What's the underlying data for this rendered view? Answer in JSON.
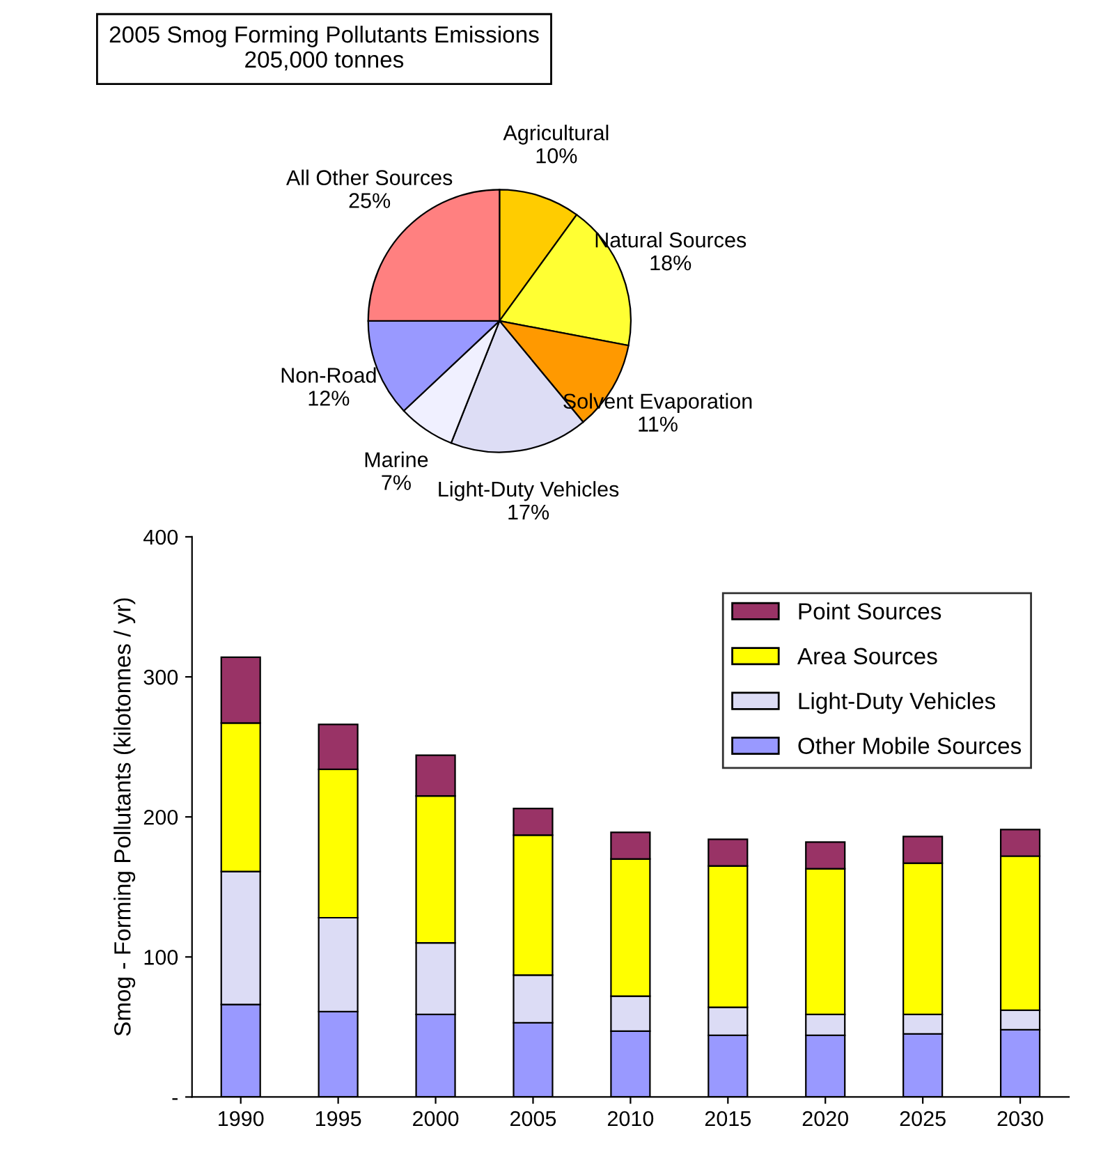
{
  "chart_data": [
    {
      "type": "pie",
      "title": "2005 Smog Forming Pollutants Emissions\n205,000 tonnes",
      "categories": [
        "Agricultural",
        "Natural Sources",
        "Solvent Evaporation",
        "Light-Duty Vehicles",
        "Marine",
        "Non-Road",
        "All Other Sources"
      ],
      "values": [
        10,
        18,
        11,
        17,
        7,
        12,
        25
      ],
      "value_labels": [
        "10%",
        "18%",
        "11%",
        "17%",
        "7%",
        "12%",
        "25%"
      ],
      "colors": [
        "#ffcc00",
        "#ffff33",
        "#ff9900",
        "#ddddf5",
        "#f0f0ff",
        "#9999ff",
        "#ff8080"
      ]
    },
    {
      "type": "bar",
      "stacked": true,
      "ylabel": "Smog - Forming Pollutants (kilotonnes / yr)",
      "categories": [
        "1990",
        "1995",
        "2000",
        "2005",
        "2010",
        "2015",
        "2020",
        "2025",
        "2030"
      ],
      "series": [
        {
          "name": "Other Mobile Sources",
          "color": "#9999ff",
          "values": [
            66,
            61,
            59,
            53,
            47,
            44,
            44,
            45,
            48
          ]
        },
        {
          "name": "Light-Duty Vehicles",
          "color": "#dcdcf5",
          "values": [
            95,
            67,
            51,
            34,
            25,
            20,
            15,
            14,
            14
          ]
        },
        {
          "name": "Area Sources",
          "color": "#ffff00",
          "values": [
            106,
            106,
            105,
            100,
            98,
            101,
            104,
            108,
            110
          ]
        },
        {
          "name": "Point Sources",
          "color": "#993366",
          "values": [
            47,
            32,
            29,
            19,
            19,
            19,
            19,
            19,
            19
          ]
        }
      ],
      "ylim": [
        0,
        400
      ],
      "yticks": [
        {
          "value": 0,
          "label": "-"
        },
        100,
        200,
        300,
        400
      ],
      "legend": "top right",
      "grid": false
    }
  ]
}
